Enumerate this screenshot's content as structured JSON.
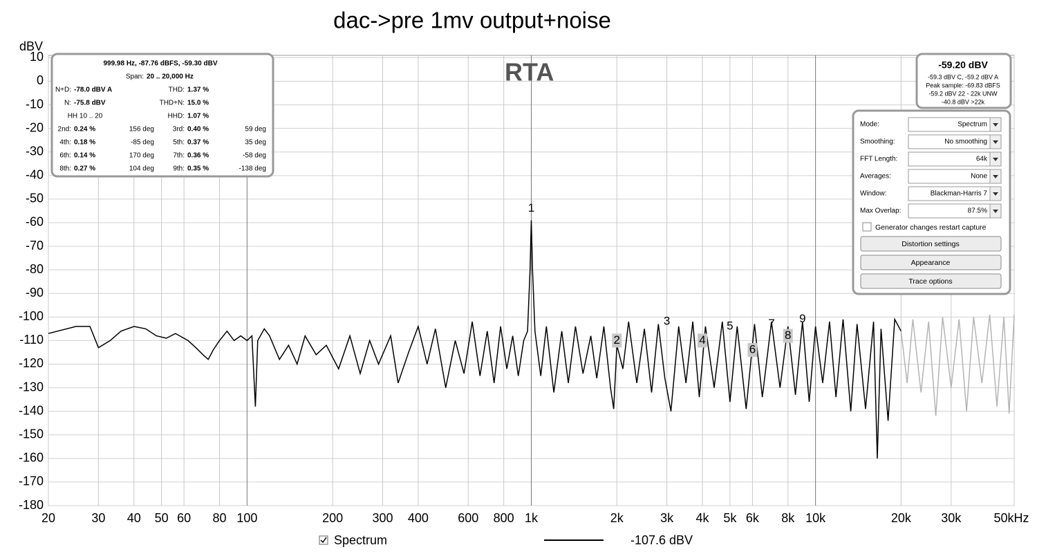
{
  "chart_data": {
    "type": "line",
    "title": "dac->pre 1mv output+noise",
    "y_label": "dBV",
    "watermark": "RTA",
    "x_scale": "log",
    "grid": true,
    "xlim": [
      20,
      50000
    ],
    "ylim": [
      -180,
      11
    ],
    "xticks": [
      20,
      30,
      40,
      50,
      60,
      80,
      100,
      200,
      300,
      400,
      600,
      800,
      {
        "value": 1000,
        "label": "1k"
      },
      {
        "value": 2000,
        "label": "2k"
      },
      {
        "value": 3000,
        "label": "3k"
      },
      {
        "value": 4000,
        "label": "4k"
      },
      {
        "value": 5000,
        "label": "5k"
      },
      {
        "value": 6000,
        "label": "6k"
      },
      {
        "value": 8000,
        "label": "8k"
      },
      {
        "value": 10000,
        "label": "10k"
      },
      {
        "value": 20000,
        "label": "20k"
      },
      {
        "value": 30000,
        "label": "30k"
      },
      {
        "value": 50000,
        "label": "50kHz"
      }
    ],
    "yticks": [
      -180,
      -170,
      -160,
      -150,
      -140,
      -130,
      -120,
      -110,
      -100,
      -90,
      -80,
      -70,
      -60,
      -50,
      -40,
      -30,
      -20,
      -10,
      0,
      10
    ],
    "series": [
      {
        "name": "Spectrum",
        "color": "#000000",
        "x": [
          20,
          25,
          28,
          30,
          33,
          36,
          40,
          44,
          48,
          52,
          56,
          62,
          66,
          70,
          73,
          76,
          80,
          85,
          90,
          95,
          100,
          104,
          107,
          109,
          115,
          120,
          130,
          140,
          150,
          160,
          175,
          190,
          210,
          230,
          250,
          270,
          290,
          320,
          340,
          370,
          400,
          430,
          460,
          500,
          540,
          580,
          620,
          660,
          700,
          740,
          780,
          820,
          860,
          900,
          940,
          970,
          990,
          1000,
          1010,
          1030,
          1080,
          1130,
          1200,
          1280,
          1350,
          1430,
          1520,
          1620,
          1700,
          1800,
          1900,
          1950,
          2000,
          2100,
          2200,
          2350,
          2500,
          2650,
          2800,
          2950,
          3100,
          3300,
          3500,
          3700,
          3900,
          4100,
          4400,
          4700,
          5000,
          5300,
          5700,
          6100,
          6500,
          7000,
          7500,
          8000,
          8500,
          9000,
          9500,
          10000,
          10600,
          11200,
          11800,
          12500,
          13300,
          14000,
          15000,
          16000,
          16500,
          17000,
          18000,
          19000,
          20000
        ],
        "values": [
          -107,
          -104,
          -104,
          -113,
          -110,
          -106,
          -104,
          -105,
          -108,
          -109,
          -107,
          -110,
          -113,
          -116,
          -118,
          -114,
          -110,
          -106,
          -110,
          -108,
          -110,
          -108,
          -138,
          -110,
          -105,
          -108,
          -118,
          -112,
          -120,
          -108,
          -116,
          -112,
          -122,
          -108,
          -124,
          -110,
          -120,
          -108,
          -128,
          -115,
          -104,
          -120,
          -105,
          -130,
          -110,
          -124,
          -102,
          -125,
          -106,
          -128,
          -104,
          -122,
          -108,
          -125,
          -110,
          -106,
          -80,
          -59,
          -80,
          -106,
          -125,
          -104,
          -132,
          -106,
          -128,
          -104,
          -124,
          -108,
          -126,
          -104,
          -130,
          -139,
          -112,
          -122,
          -102,
          -128,
          -105,
          -132,
          -103,
          -126,
          -140,
          -104,
          -128,
          -102,
          -134,
          -104,
          -130,
          -102,
          -136,
          -104,
          -139,
          -103,
          -134,
          -102,
          -130,
          -104,
          -133,
          -102,
          -136,
          -104,
          -128,
          -102,
          -134,
          -101,
          -140,
          -103,
          -139,
          -102,
          -160,
          -105,
          -144,
          -101,
          -106
        ]
      },
      {
        "color": "#b4b4b4",
        "x": [
          20000,
          21000,
          22000,
          23500,
          25000,
          26500,
          28000,
          30000,
          32000,
          34000,
          36000,
          38500,
          41000,
          43500,
          46000,
          48000,
          50000
        ],
        "values": [
          -106,
          -128,
          -101,
          -132,
          -102,
          -142,
          -100,
          -130,
          -101,
          -140,
          -100,
          -128,
          -99,
          -138,
          -100,
          -141,
          -99
        ]
      }
    ],
    "annotations": [
      {
        "text": "1",
        "x": 1000,
        "y": -54
      },
      {
        "text": "2",
        "x": 2000,
        "y": -110
      },
      {
        "text": "3",
        "x": 3000,
        "y": -102
      },
      {
        "text": "4",
        "x": 4000,
        "y": -110
      },
      {
        "text": "5",
        "x": 5000,
        "y": -104
      },
      {
        "text": "6",
        "x": 6000,
        "y": -114
      },
      {
        "text": "7",
        "x": 7000,
        "y": -103
      },
      {
        "text": "8",
        "x": 8000,
        "y": -108
      },
      {
        "text": "9",
        "x": 9000,
        "y": -101
      }
    ],
    "legend_value": "-107.6 dBV"
  },
  "ui": {
    "info": {
      "header": "999.98 Hz, -87.76 dBFS, -59.30 dBV",
      "span_label": "Span:",
      "span_value": "20 .. 20,000 Hz",
      "rows": [
        {
          "l1": "N+D:",
          "v1": "-78.0 dBV A",
          "l2": "THD:",
          "v2": "1.37 %"
        },
        {
          "l1": "N:",
          "v1": "-75.8 dBV",
          "l2": "THD+N:",
          "v2": "15.0 %"
        },
        {
          "c1": "HH 10 .. 20",
          "l2": "HHD:",
          "v2": "1.07 %"
        },
        {
          "l1": "2nd:",
          "v1": "0.24 %",
          "d1": "156 deg",
          "l2": "3rd:",
          "v2": "0.40 %",
          "d2": "59 deg"
        },
        {
          "l1": "4th:",
          "v1": "0.18 %",
          "d1": "-85 deg",
          "l2": "5th:",
          "v2": "0.37 %",
          "d2": "35 deg"
        },
        {
          "l1": "6th:",
          "v1": "0.14 %",
          "d1": "170 deg",
          "l2": "7th:",
          "v2": "0.36 %",
          "d2": "-58 deg"
        },
        {
          "l1": "8th:",
          "v1": "0.27 %",
          "d1": "104 deg",
          "l2": "9th:",
          "v2": "0.35 %",
          "d2": "-138 deg"
        }
      ]
    },
    "level": {
      "main": "-59.20 dBV",
      "lines": [
        "-59.3 dBV C, -59.2 dBV A",
        "Peak sample: -69.83 dBFS",
        "-59.2 dBV 22 - 22k UNW",
        "-40.8 dBV >22k"
      ]
    },
    "controls": [
      {
        "label": "Mode:",
        "value": "Spectrum"
      },
      {
        "label": "Smoothing:",
        "value": "No  smoothing"
      },
      {
        "label": "FFT Length:",
        "value": "64k"
      },
      {
        "label": "Averages:",
        "value": "None"
      },
      {
        "label": "Window:",
        "value": "Blackman-Harris 7"
      },
      {
        "label": "Max Overlap:",
        "value": "87.5%"
      }
    ],
    "checkbox": "Generator changes restart capture",
    "buttons": [
      "Distortion settings",
      "Appearance",
      "Trace options"
    ]
  }
}
